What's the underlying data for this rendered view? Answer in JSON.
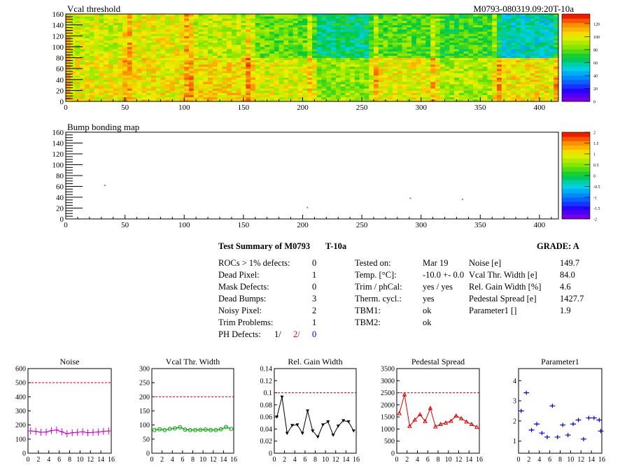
{
  "top_title": "Vcal threshold",
  "module_id": "M0793-080319.09:20T-10a",
  "bump_title": "Bump bonding map",
  "summary": {
    "title_prefix": "Test Summary of M0793",
    "test_type": "T-10a",
    "grade": "GRADE:  A",
    "rocs_label": "ROCs > 1% defects:",
    "rocs_value": "0",
    "dead_pixel_label": "Dead Pixel:",
    "dead_pixel_value": "1",
    "mask_label": "Mask Defects:",
    "mask_value": "0",
    "dead_bumps_label": "Dead Bumps:",
    "dead_bumps_value": "3",
    "noisy_label": "Noisy Pixel:",
    "noisy_value": "2",
    "trim_label": "Trim Problems:",
    "trim_value": "1",
    "ph_label": "PH Defects:",
    "ph_v1": "1/",
    "ph_v2": "2/",
    "ph_v3": "0",
    "tested_label": "Tested on:",
    "tested_value": "Mar 19",
    "temp_label": "Temp. [°C]:",
    "temp_value": "-10.0 +- 0.0",
    "trim_phcal_label": "Trim / phCal:",
    "trim_phcal_value": "yes / yes",
    "therm_label": "Therm. cycl.:",
    "therm_value": "yes",
    "tbm1_label": "TBM1:",
    "tbm1_value": "ok",
    "tbm2_label": "TBM2:",
    "tbm2_value": "ok",
    "noise_label": "Noise [e]",
    "noise_value": "149.7",
    "vcal_width_label": "Vcal Thr. Width [e]",
    "vcal_width_value": "84.0",
    "gain_label": "Rel. Gain Width [%]",
    "gain_value": "4.6",
    "pedestal_label": "Pedestal Spread [e]",
    "pedestal_value": "1427.7",
    "param1_label": "Parameter1 []",
    "param1_value": "1.9"
  },
  "chart_data": [
    {
      "type": "heatmap",
      "title": "Vcal threshold",
      "xlim": [
        0,
        416
      ],
      "ylim": [
        0,
        160
      ],
      "xticks": [
        0,
        50,
        100,
        150,
        200,
        250,
        300,
        350,
        400
      ],
      "yticks": [
        0,
        20,
        40,
        60,
        80,
        100,
        120,
        140,
        160
      ],
      "colorbar_ticks": [
        0,
        20,
        40,
        60,
        80,
        100,
        120
      ],
      "roc_mean_top": [
        95,
        100,
        92,
        80,
        62,
        78,
        74,
        55
      ],
      "roc_mean_bottom": [
        100,
        102,
        105,
        97,
        86,
        100,
        90,
        102
      ],
      "grid": false
    },
    {
      "type": "heatmap",
      "title": "Bump bonding map",
      "xlim": [
        0,
        416
      ],
      "ylim": [
        0,
        160
      ],
      "xticks": [
        0,
        50,
        100,
        150,
        200,
        250,
        300,
        350,
        400
      ],
      "yticks": [
        0,
        20,
        40,
        60,
        80,
        100,
        120,
        140,
        160
      ],
      "colorbar_ticks": [
        "-2",
        "-1.5",
        "-1",
        "-0.5",
        "0",
        "0.5",
        "1",
        "1.5",
        "2"
      ],
      "points": [
        {
          "x": 33,
          "y": 62
        },
        {
          "x": 204,
          "y": 21
        },
        {
          "x": 291,
          "y": 38
        },
        {
          "x": 335,
          "y": 36
        }
      ],
      "grid": false
    },
    {
      "type": "line",
      "title": "Noise",
      "x": [
        0,
        1,
        2,
        3,
        4,
        5,
        6,
        7,
        8,
        9,
        10,
        11,
        12,
        13,
        14,
        15
      ],
      "values": [
        158,
        155,
        148,
        150,
        160,
        165,
        152,
        138,
        145,
        148,
        152,
        145,
        148,
        150,
        155,
        158
      ],
      "ylim": [
        0,
        600
      ],
      "yticks": [
        0,
        100,
        200,
        300,
        400,
        500,
        600
      ],
      "xticks": [
        0,
        2,
        4,
        6,
        8,
        10,
        12,
        14,
        16
      ],
      "reference": 500,
      "color": "#cc00cc"
    },
    {
      "type": "line",
      "title": "Vcal Thr. Width",
      "x": [
        0,
        1,
        2,
        3,
        4,
        5,
        6,
        7,
        8,
        9,
        10,
        11,
        12,
        13,
        14,
        15
      ],
      "values": [
        82,
        85,
        82,
        86,
        88,
        92,
        84,
        82,
        82,
        83,
        84,
        82,
        82,
        85,
        93,
        86
      ],
      "ylim": [
        0,
        300
      ],
      "yticks": [
        0,
        50,
        100,
        150,
        200,
        250,
        300
      ],
      "xticks": [
        0,
        2,
        4,
        6,
        8,
        10,
        12,
        14,
        16
      ],
      "reference": 200,
      "color": "#009900"
    },
    {
      "type": "line",
      "title": "Rel. Gain Width",
      "x": [
        0,
        1,
        2,
        3,
        4,
        5,
        6,
        7,
        8,
        9,
        10,
        11,
        12,
        13,
        14,
        15
      ],
      "values": [
        0.06,
        0.093,
        0.033,
        0.046,
        0.047,
        0.033,
        0.07,
        0.037,
        0.027,
        0.047,
        0.052,
        0.03,
        0.045,
        0.054,
        0.052,
        0.037
      ],
      "ylim": [
        0,
        0.14
      ],
      "yticks": [
        0,
        0.02,
        0.04,
        0.06,
        0.08,
        0.1,
        0.12,
        0.14
      ],
      "xticks": [
        0,
        2,
        4,
        6,
        8,
        10,
        12,
        14,
        16
      ],
      "reference": 0.1,
      "color": "#000000"
    },
    {
      "type": "line",
      "title": "Pedestal Spread",
      "x": [
        0,
        1,
        2,
        3,
        4,
        5,
        6,
        7,
        8,
        9,
        10,
        11,
        12,
        13,
        14,
        15
      ],
      "values": [
        1650,
        2430,
        1120,
        1380,
        1600,
        1320,
        1860,
        1100,
        1200,
        1260,
        1330,
        1550,
        1440,
        1300,
        1200,
        1080
      ],
      "ylim": [
        0,
        3500
      ],
      "yticks": [
        0,
        500,
        1000,
        1500,
        2000,
        2500,
        3000,
        3500
      ],
      "xticks": [
        0,
        2,
        4,
        6,
        8,
        10,
        12,
        14,
        16
      ],
      "reference": 2500,
      "color": "#dd0000"
    },
    {
      "type": "scatter",
      "title": "Parameter1",
      "x": [
        0,
        1,
        2,
        3,
        4,
        5,
        6,
        7,
        8,
        9,
        10,
        11,
        12,
        13,
        14,
        15
      ],
      "values": [
        2.5,
        3.4,
        1.55,
        1.85,
        1.4,
        1.2,
        2.75,
        1.2,
        1.8,
        1.3,
        1.85,
        2.05,
        1.1,
        2.15,
        2.15,
        2.05
      ],
      "extra_point": {
        "x": 15.8,
        "y": 1.5
      },
      "ylim": [
        0.4,
        4.6
      ],
      "yticks": [
        1,
        2,
        3,
        4
      ],
      "xticks": [
        0,
        2,
        4,
        6,
        8,
        10,
        12,
        14,
        16
      ],
      "color": "#0000cc"
    }
  ]
}
